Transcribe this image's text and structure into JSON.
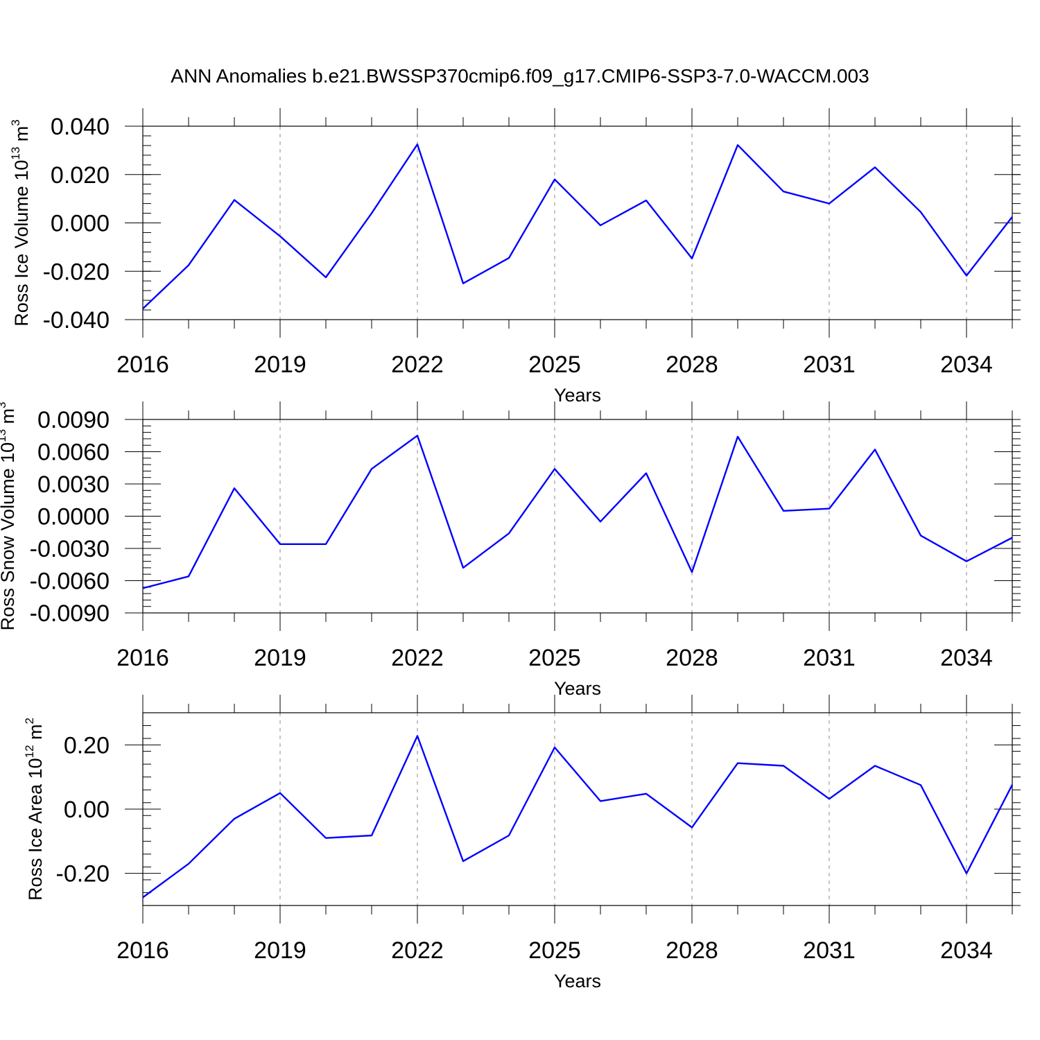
{
  "title": "ANN Anomalies b.e21.BWSSP370cmip6.f09_g17.CMIP6-SSP3-7.0-WACCM.003",
  "style": {
    "line_color": "#0000ff",
    "axis_color": "#000000",
    "grid_color": "#888888",
    "grid": "dashed vertical at major x ticks"
  },
  "chart_data": [
    {
      "type": "line",
      "xlabel": "Years",
      "ylabel": {
        "prefix": "Ross Ice Volume 10",
        "exp": "13",
        "unit": " m",
        "unit_exp": "3"
      },
      "xlim": [
        2016,
        2035
      ],
      "ylim": [
        -0.04,
        0.04
      ],
      "x_ticks": [
        "2016",
        "2019",
        "2022",
        "2025",
        "2028",
        "2031",
        "2034"
      ],
      "y_ticks": [
        "0.040",
        "0.020",
        "0.000",
        "-0.020",
        "-0.040"
      ],
      "y_tick_values": [
        0.04,
        0.02,
        0.0,
        -0.02,
        -0.04
      ],
      "x": [
        2016,
        2017,
        2018,
        2019,
        2020,
        2021,
        2022,
        2023,
        2024,
        2025,
        2026,
        2027,
        2028,
        2029,
        2030,
        2031,
        2032,
        2033,
        2034,
        2035
      ],
      "values": [
        -0.0355,
        -0.0175,
        0.0095,
        -0.0055,
        -0.0225,
        0.004,
        0.0325,
        -0.025,
        -0.0145,
        0.018,
        -0.001,
        0.0093,
        -0.0147,
        0.0322,
        0.013,
        0.008,
        0.023,
        0.0045,
        -0.0218,
        0.0025
      ]
    },
    {
      "type": "line",
      "xlabel": "Years",
      "ylabel": {
        "prefix": "Ross Snow Volume 10",
        "exp": "13",
        "unit": " m",
        "unit_exp": "3"
      },
      "xlim": [
        2016,
        2035
      ],
      "ylim": [
        -0.009,
        0.009
      ],
      "x_ticks": [
        "2016",
        "2019",
        "2022",
        "2025",
        "2028",
        "2031",
        "2034"
      ],
      "y_ticks": [
        "0.0090",
        "0.0060",
        "0.0030",
        "0.0000",
        "-0.0030",
        "-0.0060",
        "-0.0090"
      ],
      "y_tick_values": [
        0.009,
        0.006,
        0.003,
        0.0,
        -0.003,
        -0.006,
        -0.009
      ],
      "x": [
        2016,
        2017,
        2018,
        2019,
        2020,
        2021,
        2022,
        2023,
        2024,
        2025,
        2026,
        2027,
        2028,
        2029,
        2030,
        2031,
        2032,
        2033,
        2034,
        2035
      ],
      "values": [
        -0.0067,
        -0.0056,
        0.0026,
        -0.0026,
        -0.0026,
        0.0044,
        0.0075,
        -0.0048,
        -0.0016,
        0.0044,
        -0.0005,
        0.004,
        -0.0052,
        0.0074,
        0.0005,
        0.0007,
        0.0062,
        -0.0018,
        -0.0042,
        -0.002
      ]
    },
    {
      "type": "line",
      "xlabel": "Years",
      "ylabel": {
        "prefix": "Ross Ice Area 10",
        "exp": "12",
        "unit": " m",
        "unit_exp": "2"
      },
      "xlim": [
        2016,
        2035
      ],
      "ylim": [
        -0.3,
        0.3
      ],
      "x_ticks": [
        "2016",
        "2019",
        "2022",
        "2025",
        "2028",
        "2031",
        "2034"
      ],
      "y_ticks": [
        "0.20",
        "0.00",
        "-0.20"
      ],
      "y_tick_values": [
        0.2,
        0.0,
        -0.2
      ],
      "x": [
        2016,
        2017,
        2018,
        2019,
        2020,
        2021,
        2022,
        2023,
        2024,
        2025,
        2026,
        2027,
        2028,
        2029,
        2030,
        2031,
        2032,
        2033,
        2034,
        2035
      ],
      "values": [
        -0.275,
        -0.17,
        -0.03,
        0.05,
        -0.09,
        -0.082,
        0.228,
        -0.162,
        -0.082,
        0.192,
        0.025,
        0.048,
        -0.057,
        0.143,
        0.135,
        0.032,
        0.135,
        0.075,
        -0.2,
        0.076
      ]
    }
  ]
}
